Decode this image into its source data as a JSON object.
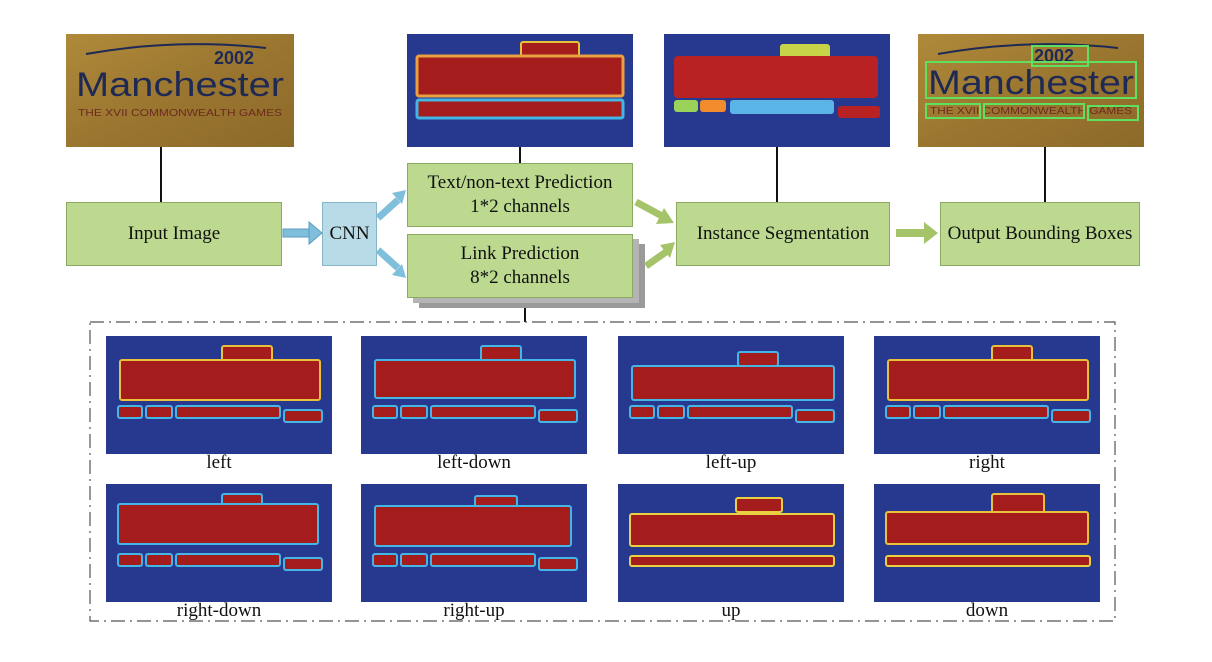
{
  "nodes": {
    "input_image": "Input Image",
    "cnn": "CNN",
    "text_pred_line1": "Text/non-text Prediction",
    "text_pred_line2": "1*2 channels",
    "link_pred_line1": "Link Prediction",
    "link_pred_line2": "8*2 channels",
    "instance_seg": "Instance Segmentation",
    "output_boxes": "Output Bounding Boxes"
  },
  "sign": {
    "year": "2002",
    "city": "Manchester",
    "subtitle": "THE XVII COMMONWEALTH GAMES"
  },
  "link_maps": [
    {
      "label": "left"
    },
    {
      "label": "left-down"
    },
    {
      "label": "left-up"
    },
    {
      "label": "right"
    },
    {
      "label": "right-down"
    },
    {
      "label": "right-up"
    },
    {
      "label": "up"
    },
    {
      "label": "down"
    }
  ],
  "colors": {
    "process_box": "#bcd98f",
    "cnn_box": "#b9dbe8",
    "heatmap_bg": "#27398f",
    "heatmap_text": "#a51c1c",
    "arrow_blue": "#7fbfdc",
    "arrow_green": "#a5c46a"
  }
}
